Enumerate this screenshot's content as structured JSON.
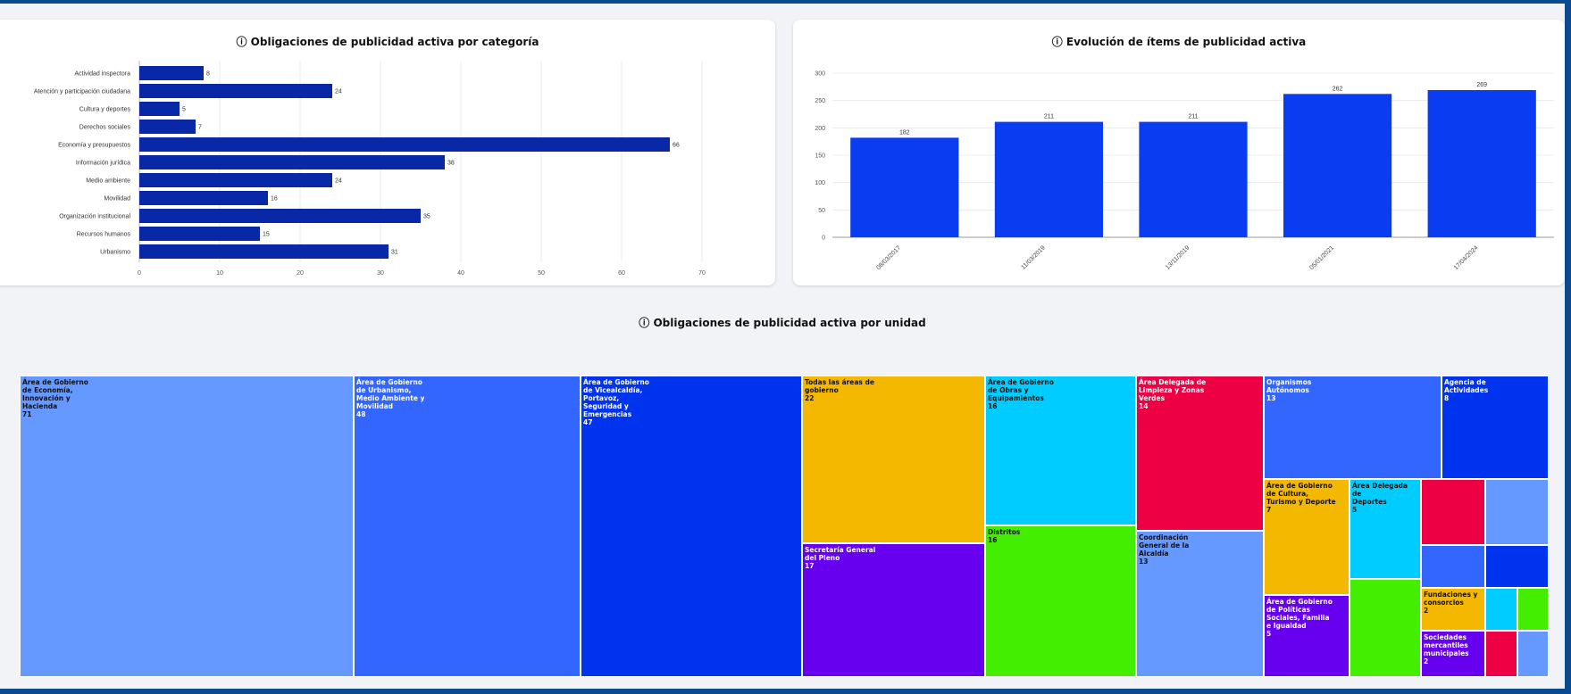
{
  "colors": {
    "hbar": "#0828a8",
    "vbar": "#0a3cf2",
    "light_blue": "#6699ff",
    "mid_blue": "#3366ff",
    "dark_blue": "#0033ee",
    "yellow": "#f5b800",
    "purple": "#6600ee",
    "cyan": "#00ccff",
    "green": "#44ee00",
    "red": "#ee0044"
  },
  "chart_data": [
    {
      "type": "bar",
      "orientation": "horizontal",
      "title": "ⓘ Obligaciones de publicidad activa por categoría",
      "categories": [
        "Actividad inspectora",
        "Atención y participación ciudadana",
        "Cultura y deportes",
        "Derechos sociales",
        "Economía y presupuestos",
        "Información jurídica",
        "Medio ambiente",
        "Movilidad",
        "Organización institucional",
        "Recursos humanos",
        "Urbanismo"
      ],
      "values": [
        8,
        24,
        5,
        7,
        66,
        38,
        24,
        16,
        35,
        15,
        31
      ],
      "xlim": [
        0,
        70
      ],
      "xticks": [
        0,
        10,
        20,
        30,
        40,
        50,
        60,
        70
      ],
      "grid": true
    },
    {
      "type": "bar",
      "title": "ⓘ Evolución de ítems de publicidad activa",
      "categories": [
        "08/03/2017",
        "11/03/2019",
        "13/11/2019",
        "05/01/2021",
        "17/04/2024"
      ],
      "values": [
        182,
        211,
        211,
        262,
        269
      ],
      "ylim": [
        0,
        300
      ],
      "yticks": [
        0,
        50,
        100,
        150,
        200,
        250,
        300
      ],
      "grid": true
    },
    {
      "type": "treemap",
      "title": "ⓘ Obligaciones de publicidad activa por unidad",
      "items": [
        {
          "label": "Área de Gobierno\nde Economía,\nInnovación y\nHacienda",
          "value": 71,
          "color": "light_blue",
          "text": "dark"
        },
        {
          "label": "Área de Gobierno\nde Urbanismo,\nMedio Ambiente y\nMovilidad",
          "value": 48,
          "color": "mid_blue",
          "text": "light"
        },
        {
          "label": "Área de Gobierno\nde Vicealcaldía,\nPortavoz,\nSeguridad y\nEmergencias",
          "value": 47,
          "color": "dark_blue",
          "text": "light"
        },
        {
          "label": "Todas las áreas de\ngobierno",
          "value": 22,
          "color": "yellow",
          "text": "dark"
        },
        {
          "label": "Secretaría General\ndel Pleno",
          "value": 17,
          "color": "purple",
          "text": "light"
        },
        {
          "label": "Área de Gobierno\nde Obras y\nEquipamientos",
          "value": 16,
          "color": "cyan",
          "text": "dark"
        },
        {
          "label": "Distritos",
          "value": 16,
          "color": "green",
          "text": "dark"
        },
        {
          "label": "Área Delegada de\nLimpieza y Zonas\nVerdes",
          "value": 14,
          "color": "red",
          "text": "light"
        },
        {
          "label": "Coordinación\nGeneral de la\nAlcaldía",
          "value": 13,
          "color": "light_blue",
          "text": "dark"
        },
        {
          "label": "Organismos\nAutónomos",
          "value": 13,
          "color": "mid_blue",
          "text": "light"
        },
        {
          "label": "Agencia de\nActividades",
          "value": 8,
          "color": "dark_blue",
          "text": "light"
        },
        {
          "label": "Área de Gobierno\nde Cultura,\nTurismo y Deporte",
          "value": 7,
          "color": "yellow",
          "text": "dark"
        },
        {
          "label": "Área Delegada de\nDeportes",
          "value": 5,
          "color": "cyan",
          "text": "dark"
        },
        {
          "label": "Área de Gobierno\nde Políticas\nSociales, Familia\ne Igualdad",
          "value": 5,
          "color": "purple",
          "text": "light"
        },
        {
          "label": "",
          "value": null,
          "color": "green",
          "text": "dark"
        },
        {
          "label": "",
          "value": null,
          "color": "red",
          "text": "light"
        },
        {
          "label": "",
          "value": null,
          "color": "light_blue",
          "text": "dark"
        },
        {
          "label": "",
          "value": null,
          "color": "mid_blue",
          "text": "light"
        },
        {
          "label": "",
          "value": null,
          "color": "dark_blue",
          "text": "light"
        },
        {
          "label": "Fundaciones y\nconsorcios",
          "value": 2,
          "color": "yellow",
          "text": "dark"
        },
        {
          "label": "",
          "value": null,
          "color": "cyan",
          "text": "dark"
        },
        {
          "label": "",
          "value": null,
          "color": "green",
          "text": "dark"
        },
        {
          "label": "Sociedades\nmercantiles\nmunicipales",
          "value": 2,
          "color": "purple",
          "text": "light"
        },
        {
          "label": "",
          "value": null,
          "color": "red",
          "text": "light"
        },
        {
          "label": "",
          "value": null,
          "color": "light_blue",
          "text": "dark"
        }
      ]
    }
  ]
}
